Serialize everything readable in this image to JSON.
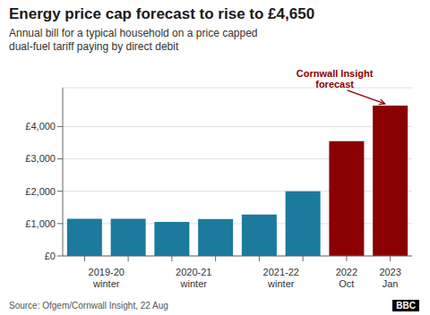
{
  "chart_data": {
    "type": "bar",
    "title": "Energy price cap forecast to rise to £4,650",
    "subtitle": "Annual bill for a typical household on a price capped\ndual-fuel tariff paying by direct debit",
    "categories": [
      "2019-20\nwinter",
      null,
      "2020-21\nwinter",
      null,
      "2021-22\nwinter",
      null,
      "2022\nOct",
      "2023\nJan"
    ],
    "values": [
      1150,
      1150,
      1050,
      1138,
      1277,
      2000,
      3549,
      4650
    ],
    "colors": [
      "#1b7a9e",
      "#1b7a9e",
      "#1b7a9e",
      "#1b7a9e",
      "#1b7a9e",
      "#1b7a9e",
      "#8b0000",
      "#8b0000"
    ],
    "ylim": [
      0,
      5200
    ],
    "yticks": [
      {
        "value": 0,
        "label": "£0"
      },
      {
        "value": 1000,
        "label": "£1,000"
      },
      {
        "value": 2000,
        "label": "£2,000"
      },
      {
        "value": 3000,
        "label": "£3,000"
      },
      {
        "value": 4000,
        "label": "£4,000"
      }
    ],
    "grid": true,
    "annotation": {
      "text": "Cornwall Insight\nforecast",
      "color": "#8b0000"
    },
    "source": "Source: Ofgem/Cornwall Insight, 22 Aug",
    "credit": "BBC"
  }
}
